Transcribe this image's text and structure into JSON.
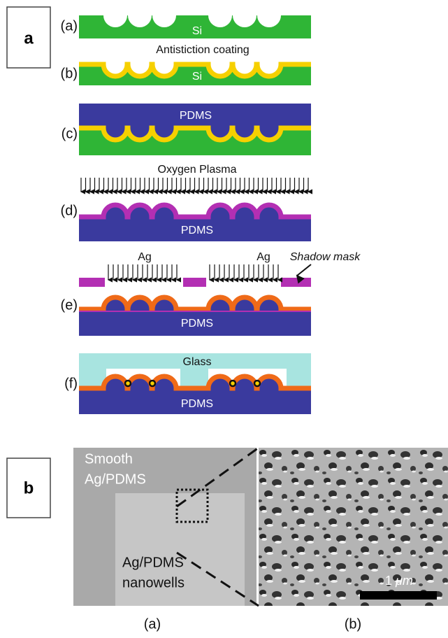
{
  "panel_a": {
    "label": "a",
    "steps": [
      {
        "label": "(a)",
        "material": "Si"
      },
      {
        "label": "(b)",
        "material": "Si"
      },
      {
        "label": "(c)",
        "material": "PDMS"
      },
      {
        "label": "(d)",
        "material": "PDMS"
      },
      {
        "label": "(e)",
        "material": "PDMS"
      },
      {
        "label": "(f)",
        "top_material": "Glass",
        "material": "PDMS"
      }
    ],
    "annotations": {
      "coating": "Antistiction coating",
      "plasma": "Oxygen Plasma",
      "ag_left": "Ag",
      "ag_right": "Ag",
      "shadow_mask": "Shadow mask"
    }
  },
  "panel_b": {
    "label": "b",
    "left_image": {
      "caption": "(a)",
      "region_top": [
        "Smooth",
        "Ag/PDMS"
      ],
      "region_bottom": [
        "Ag/PDMS",
        "nanowells"
      ]
    },
    "right_image": {
      "caption": "(b)",
      "scale_number": "1",
      "scale_unit": "μm"
    }
  }
}
